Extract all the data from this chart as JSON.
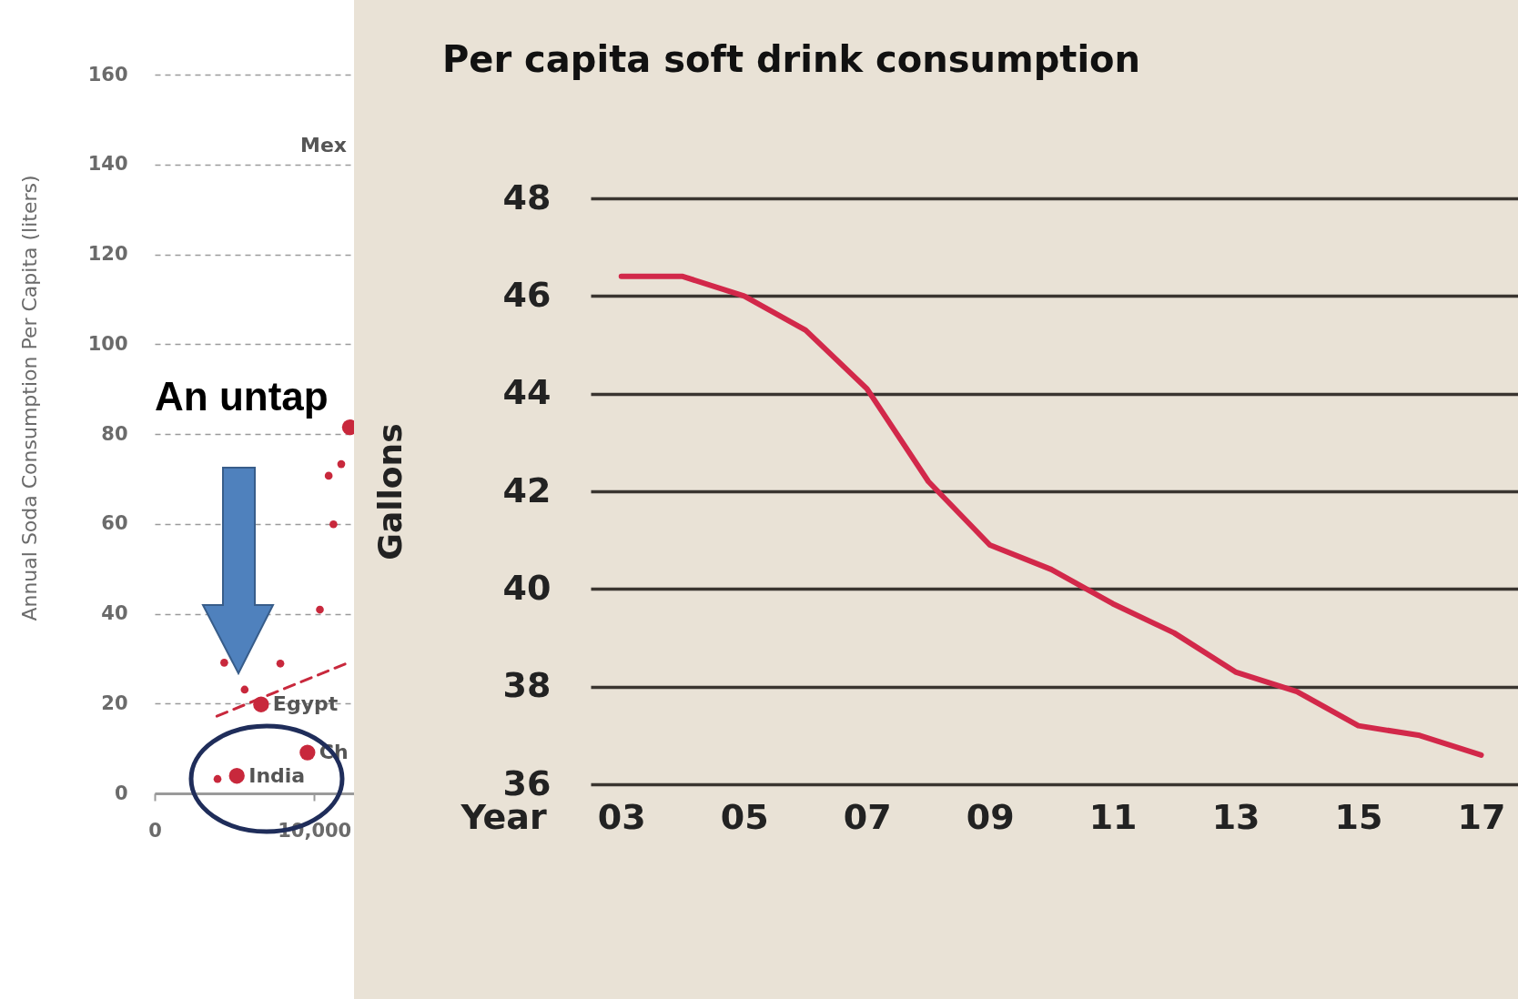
{
  "chart_data": [
    {
      "type": "bubble",
      "ylabel": "Annual Soda Consumption Per Capita (liters)",
      "xlim": [
        0,
        12500
      ],
      "xticks": [
        0,
        {
          "value": 10000,
          "label": "10,000"
        }
      ],
      "ylim": [
        0,
        160
      ],
      "yticks": [
        0,
        20,
        40,
        60,
        80,
        100,
        120,
        140,
        160
      ],
      "grid": "y",
      "annotations": [
        "An untap",
        "Mex",
        {
          "text": "India",
          "x": 5150,
          "y": 3.9
        },
        {
          "text": "Egypt",
          "x": 6670,
          "y": 19.8
        },
        {
          "text": "Ch",
          "x": 9580,
          "y": 9.1
        }
      ],
      "series": [
        {
          "color": "#c8283c",
          "x": [
            3940,
            5150,
            9580,
            6670,
            5640,
            4360,
            7880,
            10360,
            11210,
            10910,
            11700,
            12240
          ],
          "values": [
            3.2,
            3.9,
            9.1,
            19.8,
            23.1,
            29.1,
            28.9,
            40.9,
            59.9,
            70.7,
            73.3,
            81.5
          ],
          "sizes": [
            0.25,
            1,
            1,
            1,
            0.25,
            0.25,
            0.25,
            0.25,
            0.25,
            0.25,
            0.25,
            1
          ]
        },
        {
          "type": "line",
          "line_style": "dashed",
          "color": "#c8283c",
          "x": [
            3900,
            12000
          ],
          "values": [
            17.2,
            28.9
          ]
        }
      ]
    },
    {
      "type": "line",
      "title": "Per capita soft drink consumption",
      "xlabel": "Year",
      "ylabel": "Gallons",
      "x": [
        2003,
        2004,
        2005,
        2006,
        2007,
        2008,
        2009,
        2010,
        2011,
        2012,
        2013,
        2014,
        2015,
        2016,
        2017
      ],
      "xlim": [
        2002.5,
        2017.6
      ],
      "xticks": [
        {
          "value": 2003,
          "label": "03"
        },
        {
          "value": 2005,
          "label": "05"
        },
        {
          "value": 2007,
          "label": "07"
        },
        {
          "value": 2009,
          "label": "09"
        },
        {
          "value": 2011,
          "label": "11"
        },
        {
          "value": 2013,
          "label": "13"
        },
        {
          "value": 2015,
          "label": "15"
        },
        {
          "value": 2017,
          "label": "17"
        }
      ],
      "ylim": [
        36,
        48
      ],
      "yticks": [
        36,
        38,
        40,
        42,
        44,
        46,
        48
      ],
      "grid": "y",
      "marker": "none",
      "series": [
        {
          "color": "#d2284a",
          "values": [
            46.4,
            46.4,
            46.0,
            45.3,
            44.1,
            42.2,
            40.9,
            40.4,
            39.7,
            39.1,
            38.3,
            37.9,
            37.2,
            37.0,
            36.6
          ]
        }
      ]
    }
  ]
}
